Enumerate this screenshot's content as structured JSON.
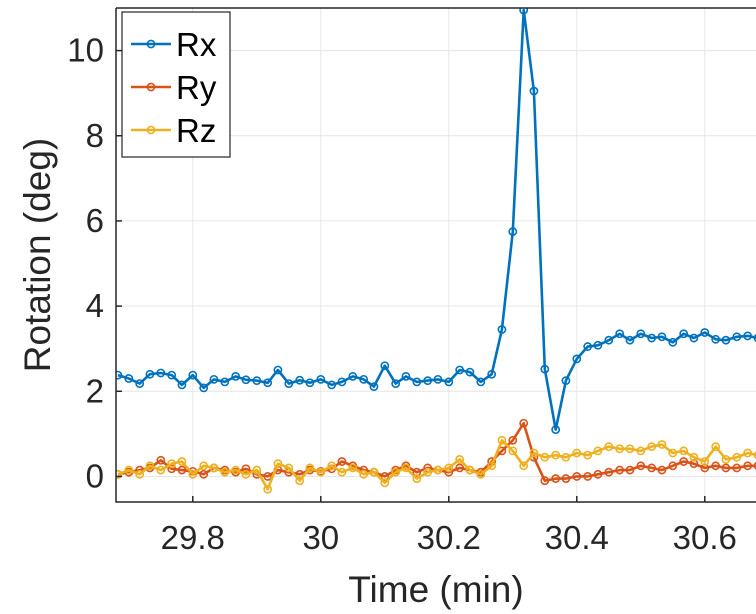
{
  "chart_data": {
    "type": "line",
    "xlabel": "Time (min)",
    "ylabel": "Rotation (deg)",
    "xlim": [
      29.68,
      30.68
    ],
    "ylim": [
      -0.6,
      11
    ],
    "xticks": [
      29.8,
      30,
      30.2,
      30.4,
      30.6
    ],
    "yticks": [
      0,
      2,
      4,
      6,
      8,
      10
    ],
    "xtick_labels": [
      "29.8",
      "30",
      "30.2",
      "30.4",
      "30.6"
    ],
    "ytick_labels": [
      "0",
      "2",
      "4",
      "6",
      "8",
      "10"
    ],
    "grid": true,
    "legend_position": "top-left",
    "x": [
      29.683,
      29.7,
      29.717,
      29.733,
      29.75,
      29.767,
      29.783,
      29.8,
      29.817,
      29.833,
      29.85,
      29.867,
      29.883,
      29.9,
      29.917,
      29.933,
      29.95,
      29.967,
      29.983,
      30.0,
      30.017,
      30.033,
      30.05,
      30.067,
      30.083,
      30.1,
      30.117,
      30.133,
      30.15,
      30.167,
      30.183,
      30.2,
      30.217,
      30.233,
      30.25,
      30.267,
      30.283,
      30.3,
      30.317,
      30.333,
      30.35,
      30.367,
      30.383,
      30.4,
      30.417,
      30.433,
      30.45,
      30.467,
      30.483,
      30.5,
      30.517,
      30.533,
      30.55,
      30.567,
      30.583,
      30.6,
      30.617,
      30.633,
      30.65,
      30.667,
      30.683
    ],
    "series": [
      {
        "name": "Rx",
        "color": "#0072BD",
        "values": [
          2.38,
          2.3,
          2.18,
          2.4,
          2.43,
          2.38,
          2.15,
          2.38,
          2.08,
          2.28,
          2.22,
          2.35,
          2.27,
          2.25,
          2.2,
          2.5,
          2.18,
          2.26,
          2.2,
          2.28,
          2.15,
          2.22,
          2.35,
          2.28,
          2.11,
          2.6,
          2.18,
          2.35,
          2.22,
          2.25,
          2.28,
          2.22,
          2.5,
          2.45,
          2.22,
          2.4,
          3.45,
          5.75,
          10.95,
          9.05,
          2.52,
          1.1,
          2.25,
          2.76,
          3.05,
          3.08,
          3.2,
          3.35,
          3.2,
          3.35,
          3.25,
          3.28,
          3.15,
          3.35,
          3.25,
          3.38,
          3.22,
          3.2,
          3.28,
          3.3,
          3.25
        ]
      },
      {
        "name": "Ry",
        "color": "#D95319",
        "values": [
          0.05,
          0.1,
          0.15,
          0.2,
          0.38,
          0.18,
          0.15,
          0.12,
          0.05,
          0.2,
          0.15,
          0.1,
          0.18,
          0.05,
          0.0,
          0.15,
          0.1,
          0.05,
          0.15,
          0.12,
          0.18,
          0.35,
          0.25,
          0.15,
          0.1,
          0.0,
          0.15,
          0.25,
          0.1,
          0.2,
          0.15,
          0.1,
          0.2,
          0.15,
          0.1,
          0.35,
          0.6,
          0.85,
          1.25,
          0.45,
          -0.1,
          -0.05,
          -0.05,
          0.0,
          0.0,
          0.05,
          0.1,
          0.15,
          0.15,
          0.25,
          0.2,
          0.15,
          0.25,
          0.35,
          0.3,
          0.2,
          0.25,
          0.2,
          0.2,
          0.25,
          0.25
        ]
      },
      {
        "name": "Rz",
        "color": "#EDB120",
        "values": [
          0.05,
          0.15,
          0.05,
          0.25,
          0.15,
          0.3,
          0.35,
          0.05,
          0.25,
          0.2,
          0.1,
          0.15,
          0.05,
          0.15,
          -0.3,
          0.3,
          0.2,
          -0.1,
          0.2,
          0.1,
          0.25,
          0.1,
          0.2,
          0.05,
          0.1,
          -0.15,
          0.1,
          0.2,
          -0.05,
          0.1,
          0.15,
          0.2,
          0.4,
          0.15,
          0.05,
          0.25,
          0.85,
          0.6,
          0.25,
          0.55,
          0.45,
          0.5,
          0.45,
          0.55,
          0.5,
          0.6,
          0.7,
          0.65,
          0.65,
          0.6,
          0.7,
          0.75,
          0.55,
          0.6,
          0.45,
          0.35,
          0.7,
          0.4,
          0.45,
          0.55,
          0.5
        ]
      }
    ]
  }
}
